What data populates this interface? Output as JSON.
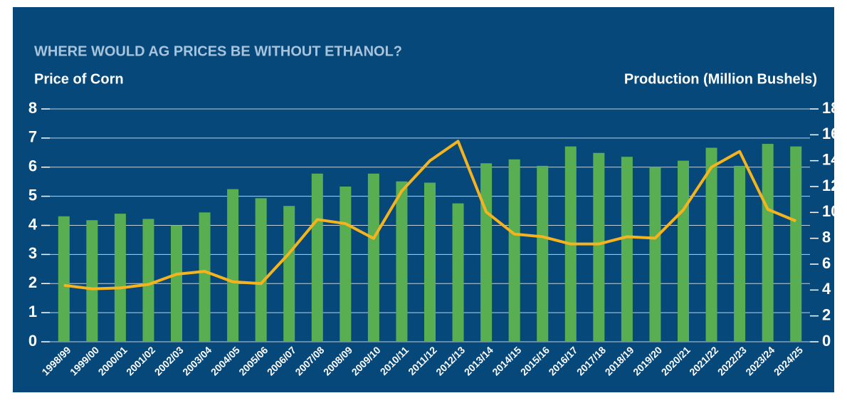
{
  "chart_data": {
    "type": "bar-line",
    "title": "WHERE WOULD AG PRICES BE WITHOUT ETHANOL?",
    "y_label": "Price of Corn",
    "y2_label": "Production (Million Bushels)",
    "categories": [
      "1998/99",
      "1999/00",
      "2000/01",
      "2001/02",
      "2002/03",
      "2003/04",
      "2004/05",
      "2005/06",
      "2006/07",
      "2007/08",
      "2008/09",
      "2009/10",
      "2010/11",
      "2011/12",
      "2012/13",
      "2013/14",
      "2014/15",
      "2015/16",
      "2016/17",
      "2017/18",
      "2018/19",
      "2019/20",
      "2020/21",
      "2021/22",
      "2022/23",
      "2023/24",
      "2024/25"
    ],
    "series": [
      {
        "type": "bar",
        "axis": "y2",
        "color": "#5aae52",
        "values": [
          9.7,
          9.4,
          9.9,
          9.5,
          9.0,
          10.0,
          11.8,
          11.1,
          10.5,
          13.0,
          12.0,
          13.0,
          12.4,
          12.3,
          10.7,
          13.8,
          14.1,
          13.6,
          15.1,
          14.6,
          14.3,
          13.5,
          14.0,
          15.0,
          13.6,
          15.3,
          15.1
        ]
      },
      {
        "type": "line",
        "axis": "y",
        "color": "#f5b31d",
        "values": [
          1.94,
          1.82,
          1.85,
          1.97,
          2.32,
          2.42,
          2.06,
          2.0,
          3.04,
          4.2,
          4.06,
          3.55,
          5.18,
          6.22,
          6.89,
          4.46,
          3.7,
          3.61,
          3.36,
          3.36,
          3.61,
          3.56,
          4.53,
          6.0,
          6.54,
          4.55,
          4.15
        ]
      }
    ],
    "ylim": [
      0,
      8
    ],
    "yticks": [
      0,
      1,
      2,
      3,
      4,
      5,
      6,
      7,
      8
    ],
    "y2lim": [
      0,
      18
    ],
    "y2ticks": [
      0,
      2,
      4,
      6,
      8,
      10,
      12,
      14,
      16,
      18
    ],
    "grid": true
  }
}
